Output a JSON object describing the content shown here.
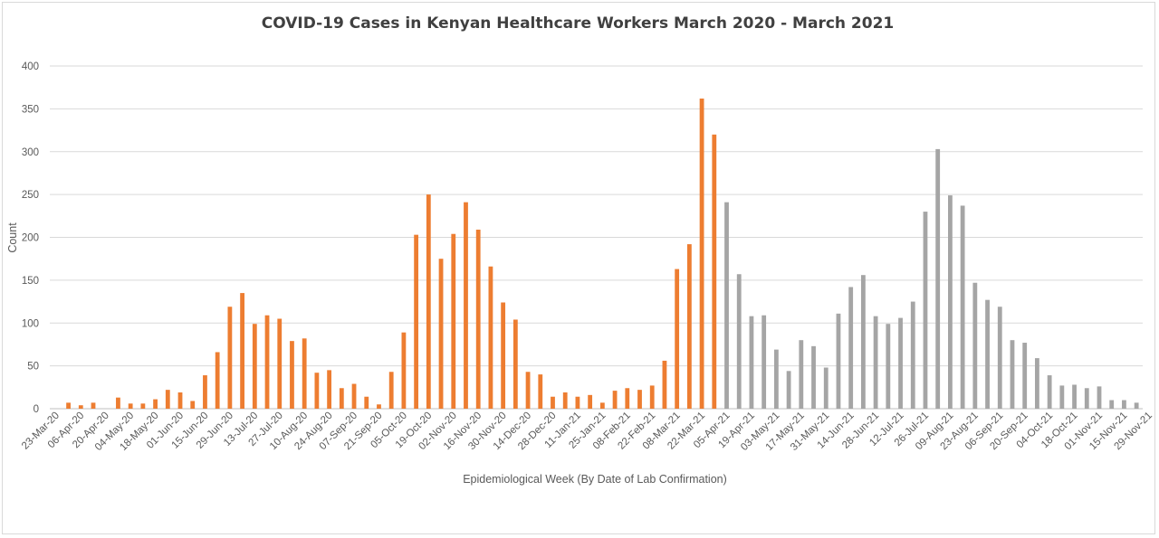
{
  "chart_data": {
    "type": "bar",
    "title": "COVID-19 Cases in Kenyan Healthcare Workers March 2020 - March 2021",
    "xlabel": "Epidemiological Week (By Date of Lab Confirmation)",
    "ylabel": "Count",
    "ylim": [
      0,
      400
    ],
    "yticks": [
      0,
      50,
      100,
      150,
      200,
      250,
      300,
      350,
      400
    ],
    "grid": true,
    "x_tick_labels": [
      "23-Mar-20",
      "06-Apr-20",
      "20-Apr-20",
      "04-May-20",
      "18-May-20",
      "01-Jun-20",
      "15-Jun-20",
      "29-Jun-20",
      "13-Jul-20",
      "27-Jul-20",
      "10-Aug-20",
      "24-Aug-20",
      "07-Sep-20",
      "21-Sep-20",
      "05-Oct-20",
      "19-Oct-20",
      "02-Nov-20",
      "16-Nov-20",
      "30-Nov-20",
      "14-Dec-20",
      "28-Dec-20",
      "11-Jan-21",
      "25-Jan-21",
      "08-Feb-21",
      "22-Feb-21",
      "08-Mar-21",
      "22-Mar-21",
      "05-Apr-21",
      "19-Apr-21",
      "03-May-21",
      "17-May-21",
      "31-May-21",
      "14-Jun-21",
      "28-Jun-21",
      "12-Jul-21",
      "26-Jul-21",
      "09-Aug-21",
      "23-Aug-21",
      "06-Sep-21",
      "20-Sep-21",
      "04-Oct-21",
      "18-Oct-21",
      "01-Nov-21",
      "15-Nov-21",
      "29-Nov-21"
    ],
    "series": [
      {
        "color": "#ed7d31",
        "values": [
          0,
          7,
          4,
          7,
          0,
          13,
          6,
          6,
          11,
          22,
          19,
          9,
          39,
          66,
          119,
          135,
          99,
          109,
          105,
          79,
          82,
          42,
          45,
          24,
          29,
          14,
          5,
          43,
          89,
          203,
          250,
          175,
          204,
          241,
          209,
          166,
          124,
          104,
          43,
          40,
          14,
          19,
          14,
          16,
          7,
          21,
          24,
          22,
          27,
          56,
          163,
          192,
          362,
          320
        ]
      },
      {
        "color": "#a5a5a5",
        "values": [
          241,
          157,
          108,
          109,
          69,
          44,
          80,
          73,
          48,
          111,
          142,
          156,
          108,
          99,
          106,
          125,
          230,
          303,
          249,
          237,
          147,
          127,
          119,
          80,
          77,
          59,
          39,
          27,
          28,
          24,
          26,
          10,
          10,
          7
        ]
      }
    ]
  }
}
